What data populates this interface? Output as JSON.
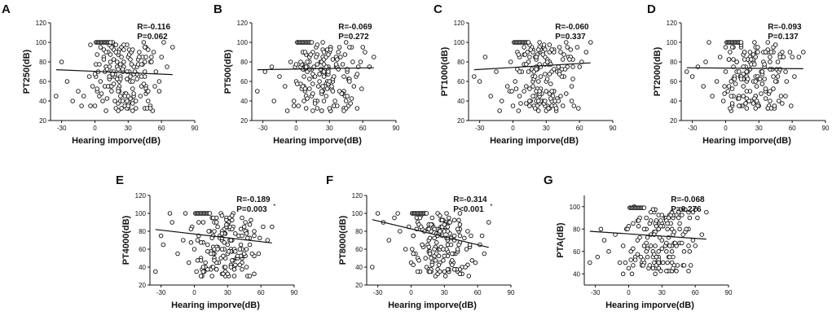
{
  "figure": {
    "axis_x_label": "Hearing imporve(dB)"
  },
  "chart_data": [
    {
      "panel": "A",
      "type": "scatter",
      "ylabel": "PT250(dB)",
      "xlabel": "Hearing imporve(dB)",
      "xlim": [
        -40,
        90
      ],
      "ylim": [
        20,
        120
      ],
      "xticks": [
        "-30",
        "0",
        "30",
        "60",
        "90"
      ],
      "yticks": [
        "20",
        "40",
        "60",
        "80",
        "100",
        "120"
      ],
      "R": "R=-0.116",
      "P": "P=0.062",
      "fit_line": {
        "x": [
          -35,
          70
        ],
        "y": [
          72,
          67
        ]
      },
      "seed": 11,
      "points": [
        [
          -35,
          45
        ],
        [
          -30,
          80
        ],
        [
          -20,
          40
        ],
        [
          -15,
          50
        ],
        [
          -10,
          45
        ],
        [
          -5,
          65
        ],
        [
          -2,
          55
        ],
        [
          0,
          35
        ],
        [
          2,
          50
        ],
        [
          3,
          70
        ],
        [
          5,
          95
        ],
        [
          5,
          60
        ],
        [
          7,
          40
        ],
        [
          8,
          85
        ],
        [
          10,
          75
        ],
        [
          10,
          30
        ],
        [
          12,
          90
        ],
        [
          14,
          55
        ],
        [
          15,
          65
        ],
        [
          18,
          40
        ],
        [
          20,
          80
        ],
        [
          22,
          50
        ],
        [
          25,
          70
        ],
        [
          27,
          35
        ],
        [
          30,
          85
        ],
        [
          32,
          60
        ],
        [
          35,
          45
        ],
        [
          38,
          75
        ],
        [
          40,
          90
        ],
        [
          42,
          55
        ],
        [
          45,
          65
        ],
        [
          48,
          40
        ],
        [
          50,
          80
        ],
        [
          55,
          70
        ],
        [
          58,
          50
        ],
        [
          60,
          85
        ],
        [
          62,
          100
        ],
        [
          65,
          75
        ],
        [
          70,
          95
        ],
        [
          -25,
          60
        ],
        [
          -12,
          35
        ],
        [
          4,
          45
        ],
        [
          9,
          55
        ],
        [
          16,
          100
        ],
        [
          24,
          95
        ],
        [
          34,
          40
        ],
        [
          44,
          100
        ],
        [
          52,
          30
        ]
      ]
    },
    {
      "panel": "B",
      "type": "scatter",
      "ylabel": "PT500(dB)",
      "xlabel": "Hearing imporve(dB)",
      "xlim": [
        -40,
        90
      ],
      "ylim": [
        20,
        120
      ],
      "xticks": [
        "-30",
        "0",
        "30",
        "60",
        "90"
      ],
      "yticks": [
        "20",
        "40",
        "60",
        "80",
        "100",
        "120"
      ],
      "R": "R=-0.069",
      "P": "P=0.272",
      "fit_line": {
        "x": [
          -35,
          70
        ],
        "y": [
          72,
          74
        ]
      },
      "seed": 23,
      "points": [
        [
          -35,
          50
        ],
        [
          -28,
          70
        ],
        [
          -20,
          40
        ],
        [
          -15,
          65
        ],
        [
          -10,
          55
        ],
        [
          -5,
          80
        ],
        [
          -2,
          40
        ],
        [
          0,
          60
        ],
        [
          2,
          35
        ],
        [
          4,
          75
        ],
        [
          6,
          90
        ],
        [
          8,
          50
        ],
        [
          10,
          70
        ],
        [
          12,
          85
        ],
        [
          14,
          45
        ],
        [
          16,
          65
        ],
        [
          18,
          95
        ],
        [
          20,
          55
        ],
        [
          22,
          80
        ],
        [
          25,
          40
        ],
        [
          28,
          70
        ],
        [
          30,
          90
        ],
        [
          33,
          60
        ],
        [
          36,
          75
        ],
        [
          40,
          85
        ],
        [
          43,
          50
        ],
        [
          46,
          70
        ],
        [
          50,
          95
        ],
        [
          54,
          65
        ],
        [
          58,
          80
        ],
        [
          62,
          90
        ],
        [
          66,
          75
        ],
        [
          70,
          85
        ],
        [
          -22,
          75
        ],
        [
          -8,
          30
        ],
        [
          7,
          40
        ],
        [
          15,
          30
        ],
        [
          24,
          100
        ],
        [
          34,
          35
        ],
        [
          45,
          100
        ],
        [
          52,
          55
        ]
      ]
    },
    {
      "panel": "C",
      "type": "scatter",
      "ylabel": "PT1000(dB)",
      "xlabel": "Hearing imporve(dB)",
      "xlim": [
        -40,
        90
      ],
      "ylim": [
        20,
        120
      ],
      "xticks": [
        "-30",
        "0",
        "30",
        "60",
        "90"
      ],
      "yticks": [
        "20",
        "40",
        "60",
        "80",
        "100",
        "120"
      ],
      "R": "R=-0.060",
      "P": "P=0.337",
      "fit_line": {
        "x": [
          -35,
          70
        ],
        "y": [
          72,
          79
        ]
      },
      "seed": 37,
      "points": [
        [
          -35,
          65
        ],
        [
          -30,
          60
        ],
        [
          -25,
          85
        ],
        [
          -20,
          45
        ],
        [
          -15,
          70
        ],
        [
          -10,
          40
        ],
        [
          -5,
          55
        ],
        [
          -2,
          80
        ],
        [
          0,
          35
        ],
        [
          2,
          60
        ],
        [
          4,
          90
        ],
        [
          6,
          45
        ],
        [
          8,
          70
        ],
        [
          10,
          95
        ],
        [
          12,
          55
        ],
        [
          14,
          80
        ],
        [
          16,
          40
        ],
        [
          18,
          65
        ],
        [
          20,
          85
        ],
        [
          22,
          50
        ],
        [
          25,
          75
        ],
        [
          28,
          95
        ],
        [
          30,
          60
        ],
        [
          33,
          80
        ],
        [
          36,
          45
        ],
        [
          40,
          70
        ],
        [
          43,
          90
        ],
        [
          46,
          65
        ],
        [
          50,
          85
        ],
        [
          54,
          75
        ],
        [
          58,
          95
        ],
        [
          62,
          80
        ],
        [
          66,
          90
        ],
        [
          70,
          100
        ],
        [
          -12,
          30
        ],
        [
          5,
          30
        ],
        [
          15,
          35
        ],
        [
          24,
          100
        ],
        [
          35,
          35
        ],
        [
          48,
          100
        ]
      ]
    },
    {
      "panel": "D",
      "type": "scatter",
      "ylabel": "PT2000(dB)",
      "xlabel": "Hearing imporve(dB)",
      "xlim": [
        -40,
        90
      ],
      "ylim": [
        20,
        120
      ],
      "xticks": [
        "-30",
        "0",
        "30",
        "60",
        "90"
      ],
      "yticks": [
        "20",
        "40",
        "60",
        "80",
        "100",
        "120"
      ],
      "R": "R=-0.093",
      "P": "P=0.137",
      "fit_line": {
        "x": [
          -35,
          70
        ],
        "y": [
          74,
          73
        ]
      },
      "seed": 53,
      "points": [
        [
          -35,
          70
        ],
        [
          -30,
          65
        ],
        [
          -25,
          75
        ],
        [
          -20,
          55
        ],
        [
          -15,
          100
        ],
        [
          -12,
          45
        ],
        [
          -8,
          60
        ],
        [
          -5,
          85
        ],
        [
          -2,
          40
        ],
        [
          0,
          70
        ],
        [
          2,
          50
        ],
        [
          4,
          90
        ],
        [
          6,
          35
        ],
        [
          8,
          65
        ],
        [
          10,
          80
        ],
        [
          12,
          45
        ],
        [
          14,
          95
        ],
        [
          16,
          55
        ],
        [
          18,
          75
        ],
        [
          20,
          40
        ],
        [
          22,
          85
        ],
        [
          25,
          60
        ],
        [
          28,
          90
        ],
        [
          30,
          35
        ],
        [
          33,
          70
        ],
        [
          36,
          50
        ],
        [
          40,
          80
        ],
        [
          43,
          95
        ],
        [
          46,
          60
        ],
        [
          50,
          85
        ],
        [
          54,
          70
        ],
        [
          58,
          90
        ],
        [
          62,
          65
        ],
        [
          66,
          85
        ],
        [
          70,
          90
        ],
        [
          -18,
          80
        ],
        [
          5,
          30
        ],
        [
          15,
          35
        ],
        [
          26,
          100
        ],
        [
          38,
          100
        ],
        [
          48,
          40
        ]
      ]
    },
    {
      "panel": "E",
      "type": "scatter",
      "ylabel": "PT4000(dB)",
      "xlabel": "Hearing imporve(dB)",
      "xlim": [
        -40,
        90
      ],
      "ylim": [
        20,
        120
      ],
      "xticks": [
        "-30",
        "0",
        "30",
        "60",
        "90"
      ],
      "yticks": [
        "20",
        "40",
        "60",
        "80",
        "100",
        "120"
      ],
      "R": "R=-0.189",
      "P": "P=0.003",
      "P_mark": "*",
      "fit_line": {
        "x": [
          -35,
          70
        ],
        "y": [
          82,
          67
        ]
      },
      "seed": 71,
      "points": [
        [
          -35,
          35
        ],
        [
          -30,
          75
        ],
        [
          -28,
          65
        ],
        [
          -20,
          90
        ],
        [
          -15,
          55
        ],
        [
          -10,
          70
        ],
        [
          -5,
          45
        ],
        [
          -2,
          85
        ],
        [
          0,
          60
        ],
        [
          2,
          35
        ],
        [
          4,
          75
        ],
        [
          6,
          50
        ],
        [
          8,
          90
        ],
        [
          10,
          40
        ],
        [
          12,
          65
        ],
        [
          14,
          80
        ],
        [
          16,
          30
        ],
        [
          18,
          55
        ],
        [
          20,
          95
        ],
        [
          22,
          45
        ],
        [
          25,
          70
        ],
        [
          28,
          35
        ],
        [
          30,
          85
        ],
        [
          33,
          60
        ],
        [
          36,
          40
        ],
        [
          40,
          75
        ],
        [
          43,
          50
        ],
        [
          46,
          90
        ],
        [
          50,
          65
        ],
        [
          54,
          80
        ],
        [
          58,
          55
        ],
        [
          62,
          85
        ],
        [
          66,
          70
        ],
        [
          70,
          85
        ],
        [
          -22,
          100
        ],
        [
          -8,
          100
        ],
        [
          7,
          30
        ],
        [
          24,
          100
        ],
        [
          35,
          100
        ],
        [
          48,
          30
        ]
      ]
    },
    {
      "panel": "F",
      "type": "scatter",
      "ylabel": "PT8000(dB)",
      "xlabel": "Hearing imporve(dB)",
      "xlim": [
        -40,
        90
      ],
      "ylim": [
        20,
        120
      ],
      "xticks": [
        "-30",
        "0",
        "30",
        "60",
        "90"
      ],
      "yticks": [
        "20",
        "40",
        "60",
        "80",
        "100",
        "120"
      ],
      "R": "R=-0.314",
      "P": "P<0.001",
      "P_mark": "*",
      "fit_line": {
        "x": [
          -35,
          70
        ],
        "y": [
          93,
          62
        ]
      },
      "seed": 89,
      "points": [
        [
          -35,
          40
        ],
        [
          -30,
          100
        ],
        [
          -25,
          90
        ],
        [
          -20,
          70
        ],
        [
          -15,
          95
        ],
        [
          -10,
          80
        ],
        [
          -5,
          60
        ],
        [
          -2,
          85
        ],
        [
          0,
          45
        ],
        [
          2,
          75
        ],
        [
          4,
          55
        ],
        [
          6,
          90
        ],
        [
          8,
          35
        ],
        [
          10,
          65
        ],
        [
          12,
          80
        ],
        [
          14,
          40
        ],
        [
          16,
          70
        ],
        [
          18,
          50
        ],
        [
          20,
          85
        ],
        [
          22,
          30
        ],
        [
          25,
          60
        ],
        [
          28,
          75
        ],
        [
          30,
          35
        ],
        [
          33,
          65
        ],
        [
          36,
          45
        ],
        [
          40,
          55
        ],
        [
          43,
          80
        ],
        [
          46,
          40
        ],
        [
          50,
          60
        ],
        [
          54,
          75
        ],
        [
          58,
          45
        ],
        [
          62,
          65
        ],
        [
          66,
          55
        ],
        [
          70,
          90
        ],
        [
          -12,
          100
        ],
        [
          24,
          100
        ],
        [
          32,
          100
        ],
        [
          44,
          100
        ],
        [
          52,
          30
        ],
        [
          64,
          75
        ]
      ]
    },
    {
      "panel": "G",
      "type": "scatter",
      "ylabel": "PTA(dB)",
      "xlabel": "Hearing imporve(dB)",
      "xlim": [
        -40,
        90
      ],
      "ylim": [
        30,
        110
      ],
      "xticks": [
        "-30",
        "0",
        "30",
        "60",
        "90"
      ],
      "yticks": [
        "40",
        "60",
        "80",
        "100"
      ],
      "R": "R=-0.068",
      "P": "P=0.276",
      "fit_line": {
        "x": [
          -35,
          70
        ],
        "y": [
          78,
          71
        ]
      },
      "seed": 97,
      "points": [
        [
          -35,
          50
        ],
        [
          -28,
          55
        ],
        [
          -22,
          70
        ],
        [
          -18,
          60
        ],
        [
          -12,
          75
        ],
        [
          -8,
          50
        ],
        [
          -5,
          65
        ],
        [
          -2,
          80
        ],
        [
          0,
          45
        ],
        [
          2,
          60
        ],
        [
          4,
          85
        ],
        [
          6,
          55
        ],
        [
          8,
          70
        ],
        [
          10,
          90
        ],
        [
          12,
          50
        ],
        [
          14,
          65
        ],
        [
          16,
          80
        ],
        [
          18,
          45
        ],
        [
          20,
          75
        ],
        [
          22,
          60
        ],
        [
          25,
          85
        ],
        [
          28,
          50
        ],
        [
          30,
          70
        ],
        [
          33,
          90
        ],
        [
          36,
          55
        ],
        [
          40,
          75
        ],
        [
          43,
          65
        ],
        [
          46,
          85
        ],
        [
          50,
          60
        ],
        [
          54,
          80
        ],
        [
          58,
          70
        ],
        [
          62,
          90
        ],
        [
          66,
          75
        ],
        [
          70,
          95
        ],
        [
          -25,
          80
        ],
        [
          5,
          100
        ],
        [
          24,
          40
        ],
        [
          45,
          95
        ],
        [
          60,
          65
        ]
      ]
    }
  ]
}
